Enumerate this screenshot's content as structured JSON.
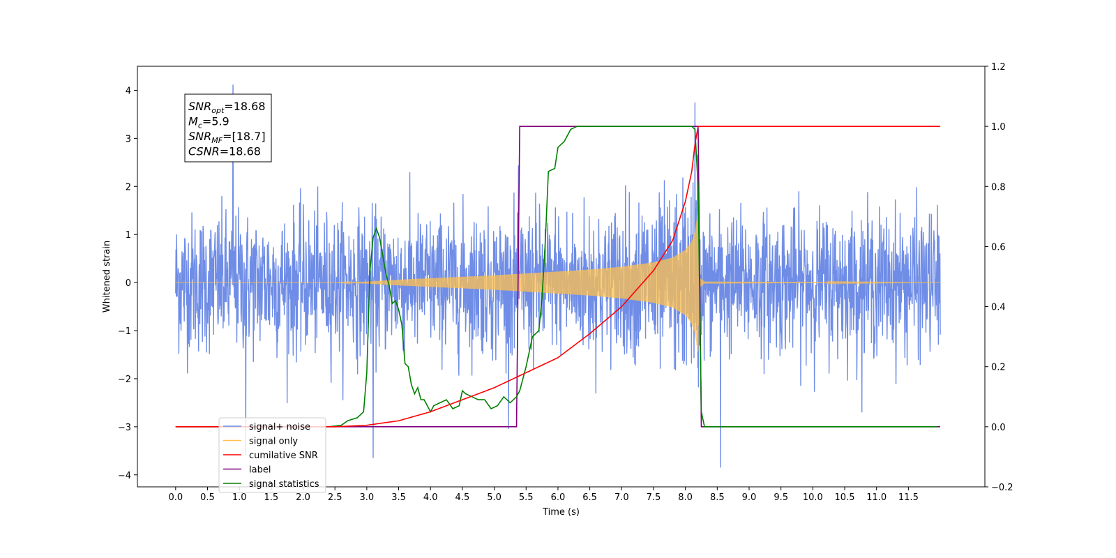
{
  "chart_data": {
    "type": "line",
    "title": "",
    "xlabel": "Time (s)",
    "ylabel": "Whitened strain",
    "ylabel_right": "",
    "xlim": [
      -0.6,
      12.7
    ],
    "ylim": [
      -4.25,
      4.5
    ],
    "ylim_right": [
      -0.2,
      1.2
    ],
    "x_ticks": [
      0.0,
      0.5,
      1.0,
      1.5,
      2.0,
      2.5,
      3.0,
      3.5,
      4.0,
      4.5,
      5.0,
      5.5,
      6.0,
      6.5,
      7.0,
      7.5,
      8.0,
      8.5,
      9.0,
      9.5,
      10.0,
      10.5,
      11.0,
      11.5
    ],
    "x_tick_labels": [
      "0.0",
      "0.5",
      "1.0",
      "1.5",
      "2.0",
      "2.5",
      "3.0",
      "3.5",
      "4.0",
      "4.5",
      "5.0",
      "5.5",
      "6.0",
      "6.5",
      "7.0",
      "7.5",
      "8.0",
      "8.5",
      "9.0",
      "9.5",
      "10.0",
      "10.5",
      "11.0",
      "11.5"
    ],
    "y_ticks": [
      4,
      3,
      2,
      1,
      0,
      -1,
      -2,
      -3,
      -4
    ],
    "y_tick_labels": [
      "4",
      "3",
      "2",
      "1",
      "0",
      "−1",
      "−2",
      "−3",
      "−4"
    ],
    "y_ticks_right": [
      1.2,
      1.0,
      0.8,
      0.6,
      0.4,
      0.2,
      0.0,
      -0.2
    ],
    "y_tick_labels_right": [
      "1.2",
      "1.0",
      "0.8",
      "0.6",
      "0.4",
      "0.2",
      "0.0",
      "−0.2"
    ],
    "grid": false,
    "legend_position": "lower-left",
    "annotation": {
      "lines": [
        {
          "sym": "SNR",
          "sub": "opt",
          "value": "=18.68"
        },
        {
          "sym": "M",
          "sub": "c",
          "value": "=5.9"
        },
        {
          "sym": "SNR",
          "sub": "MF",
          "value": "=[18.7]"
        },
        {
          "sym": "CSNR",
          "sub": "",
          "value": "=18.68"
        }
      ]
    },
    "series": [
      {
        "name": "signal+ noise",
        "axis": "left",
        "color": "#6f8de6",
        "x_range": [
          0.0,
          12.0
        ],
        "amplitude_envelope": [
          2.1,
          2.3,
          2.4,
          2.6
        ],
        "peak_values": [
          {
            "x": 0.9,
            "y": 4.12
          },
          {
            "x": 1.1,
            "y": -3.6
          },
          {
            "x": 3.1,
            "y": -3.65
          },
          {
            "x": 8.15,
            "y": 3.75
          },
          {
            "x": 8.55,
            "y": -3.85
          }
        ]
      },
      {
        "name": "signal only",
        "axis": "left",
        "color": "#ffc04d",
        "points": [
          [
            0.0,
            0.0
          ],
          [
            2.5,
            0.0
          ],
          [
            3.0,
            0.02
          ],
          [
            3.5,
            0.06
          ],
          [
            4.0,
            0.09
          ],
          [
            4.5,
            0.12
          ],
          [
            5.0,
            0.15
          ],
          [
            5.5,
            0.19
          ],
          [
            6.0,
            0.23
          ],
          [
            6.5,
            0.27
          ],
          [
            7.0,
            0.33
          ],
          [
            7.5,
            0.42
          ],
          [
            7.8,
            0.52
          ],
          [
            8.0,
            0.68
          ],
          [
            8.1,
            0.85
          ],
          [
            8.15,
            1.05
          ],
          [
            8.2,
            1.5
          ],
          [
            8.22,
            0.1
          ],
          [
            8.3,
            0.02
          ],
          [
            12.0,
            0.0
          ]
        ]
      },
      {
        "name": "cumilative SNR",
        "axis": "right",
        "color": "#ff0000",
        "points": [
          [
            0.0,
            0.0
          ],
          [
            2.5,
            0.0
          ],
          [
            3.0,
            0.005
          ],
          [
            3.5,
            0.02
          ],
          [
            4.0,
            0.05
          ],
          [
            4.5,
            0.09
          ],
          [
            5.0,
            0.13
          ],
          [
            5.5,
            0.18
          ],
          [
            6.0,
            0.23
          ],
          [
            6.5,
            0.31
          ],
          [
            7.0,
            0.4
          ],
          [
            7.5,
            0.52
          ],
          [
            7.8,
            0.62
          ],
          [
            8.0,
            0.75
          ],
          [
            8.1,
            0.85
          ],
          [
            8.15,
            0.94
          ],
          [
            8.2,
            1.0
          ],
          [
            12.0,
            1.0
          ]
        ]
      },
      {
        "name": "label",
        "axis": "right",
        "color": "#800080",
        "points": [
          [
            0.0,
            0.0
          ],
          [
            5.35,
            0.0
          ],
          [
            5.4,
            1.0
          ],
          [
            8.2,
            1.0
          ],
          [
            8.25,
            0.0
          ],
          [
            12.0,
            0.0
          ]
        ]
      },
      {
        "name": "signal statistics",
        "axis": "right",
        "color": "#008000",
        "points": [
          [
            0.0,
            0.0
          ],
          [
            2.4,
            0.0
          ],
          [
            2.6,
            0.005
          ],
          [
            2.7,
            0.02
          ],
          [
            2.85,
            0.03
          ],
          [
            2.95,
            0.05
          ],
          [
            3.0,
            0.18
          ],
          [
            3.05,
            0.52
          ],
          [
            3.1,
            0.63
          ],
          [
            3.15,
            0.66
          ],
          [
            3.2,
            0.63
          ],
          [
            3.25,
            0.57
          ],
          [
            3.3,
            0.51
          ],
          [
            3.35,
            0.47
          ],
          [
            3.4,
            0.41
          ],
          [
            3.45,
            0.42
          ],
          [
            3.5,
            0.39
          ],
          [
            3.55,
            0.34
          ],
          [
            3.6,
            0.21
          ],
          [
            3.65,
            0.2
          ],
          [
            3.7,
            0.14
          ],
          [
            3.75,
            0.11
          ],
          [
            3.8,
            0.13
          ],
          [
            3.85,
            0.09
          ],
          [
            3.9,
            0.09
          ],
          [
            3.95,
            0.07
          ],
          [
            4.0,
            0.05
          ],
          [
            4.05,
            0.07
          ],
          [
            4.15,
            0.08
          ],
          [
            4.25,
            0.09
          ],
          [
            4.35,
            0.06
          ],
          [
            4.45,
            0.07
          ],
          [
            4.5,
            0.12
          ],
          [
            4.55,
            0.11
          ],
          [
            4.65,
            0.1
          ],
          [
            4.75,
            0.09
          ],
          [
            4.85,
            0.09
          ],
          [
            4.95,
            0.06
          ],
          [
            5.05,
            0.07
          ],
          [
            5.15,
            0.1
          ],
          [
            5.25,
            0.08
          ],
          [
            5.35,
            0.1
          ],
          [
            5.4,
            0.12
          ],
          [
            5.5,
            0.2
          ],
          [
            5.6,
            0.3
          ],
          [
            5.7,
            0.32
          ],
          [
            5.75,
            0.43
          ],
          [
            5.8,
            0.61
          ],
          [
            5.85,
            0.85
          ],
          [
            5.95,
            0.86
          ],
          [
            6.0,
            0.93
          ],
          [
            6.1,
            0.95
          ],
          [
            6.2,
            0.99
          ],
          [
            6.3,
            1.0
          ],
          [
            8.1,
            1.0
          ],
          [
            8.15,
            0.99
          ],
          [
            8.2,
            0.8
          ],
          [
            8.25,
            0.05
          ],
          [
            8.3,
            0.0
          ],
          [
            11.95,
            0.0
          ]
        ]
      }
    ]
  }
}
